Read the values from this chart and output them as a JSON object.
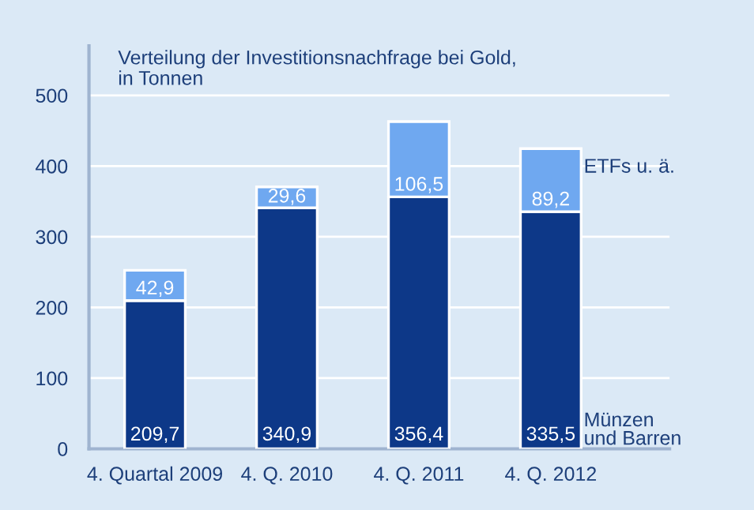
{
  "chart_data": {
    "type": "bar",
    "title": "Verteilung der Investitionsnachfrage bei Gold,\nin Tonnen",
    "stacked": true,
    "categories": [
      "4. Quartal 2009",
      "4. Q. 2010",
      "4. Q. 2011",
      "4. Q. 2012"
    ],
    "series": [
      {
        "name": "Münzen\nund Barren",
        "color": "#0d3888",
        "values": [
          209.7,
          340.9,
          356.4,
          335.5
        ],
        "value_labels": [
          "209,7",
          "340,9",
          "356,4",
          "335,5"
        ]
      },
      {
        "name": "ETFs u. ä.",
        "color": "#6fa8f0",
        "values": [
          42.9,
          29.6,
          106.5,
          89.2
        ],
        "value_labels": [
          "42,9",
          "29,6",
          "106,5",
          "89,2"
        ]
      }
    ],
    "ylim": [
      0,
      570
    ],
    "yticks": [
      0,
      100,
      200,
      300,
      400,
      500
    ],
    "grid": "y",
    "legend": false
  }
}
